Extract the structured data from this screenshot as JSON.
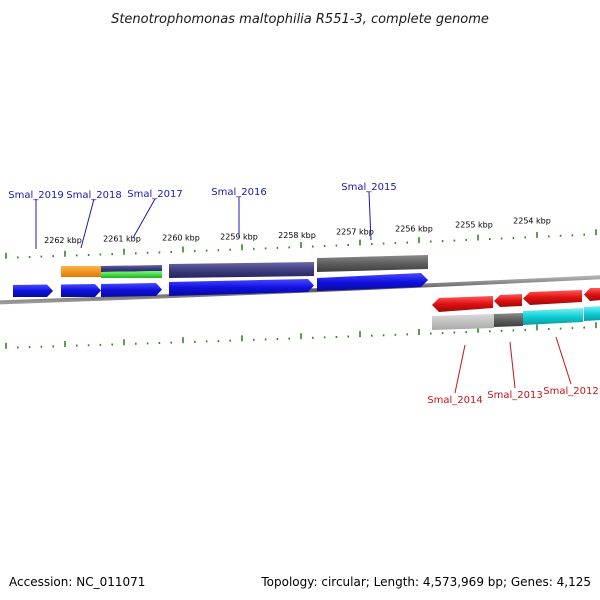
{
  "title": "Stenotrophomonas maltophilia R551-3, complete genome",
  "footer": {
    "accession": "Accession: NC_011071",
    "summary": "Topology: circular; Length: 4,573,969 bp; Genes: 4,125"
  },
  "colors": {
    "backbone": "#6e6e6e",
    "tick": "#2e8b22",
    "forward_label": "#1a1ab4",
    "reverse_label": "#c81414",
    "cds_forward": "#1414e6",
    "cds_reverse": "#e61414"
  },
  "scale": {
    "ticks": [
      {
        "label": "2262 kbp",
        "kbp": 2262
      },
      {
        "label": "2261 kbp",
        "kbp": 2261
      },
      {
        "label": "2260 kbp",
        "kbp": 2260
      },
      {
        "label": "2259 kbp",
        "kbp": 2259
      },
      {
        "label": "2258 kbp",
        "kbp": 2258
      },
      {
        "label": "2257 kbp",
        "kbp": 2257
      },
      {
        "label": "2256 kbp",
        "kbp": 2256
      },
      {
        "label": "2255 kbp",
        "kbp": 2255
      },
      {
        "label": "2254 kbp",
        "kbp": 2254
      }
    ]
  },
  "genes": {
    "forward": [
      {
        "label": "Smal_2019"
      },
      {
        "label": "Smal_2018"
      },
      {
        "label": "Smal_2017"
      },
      {
        "label": "Smal_2016"
      },
      {
        "label": "Smal_2015"
      }
    ],
    "reverse": [
      {
        "label": "Smal_2014"
      },
      {
        "label": "Smal_2013"
      },
      {
        "label": "Smal_2012"
      }
    ]
  }
}
